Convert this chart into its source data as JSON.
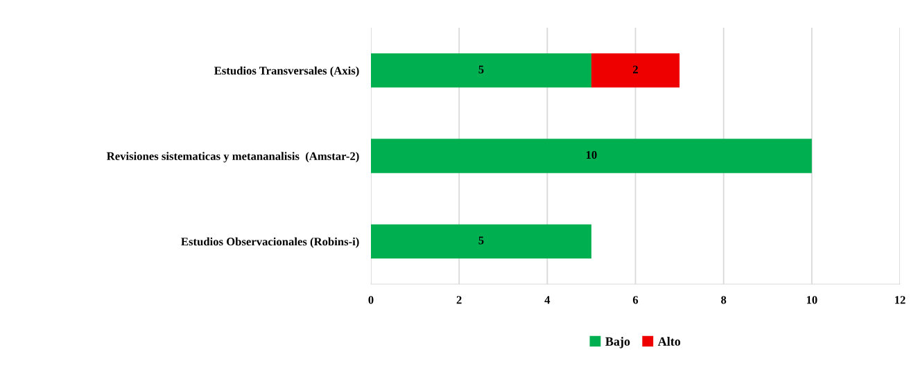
{
  "chart_data": {
    "type": "bar",
    "orientation": "horizontal",
    "stacked": true,
    "categories": [
      "Estudios Transversales (Axis)",
      "Revisiones sistematicas y metananalisis  (Amstar-2)",
      "Estudios Observacionales (Robins-i)"
    ],
    "series": [
      {
        "name": "Bajo",
        "color": "#00b050",
        "values": [
          5,
          10,
          5
        ]
      },
      {
        "name": "Alto",
        "color": "#ee0000",
        "values": [
          2,
          null,
          null
        ]
      }
    ],
    "xlim": [
      0,
      12
    ],
    "xticks": [
      0,
      2,
      4,
      6,
      8,
      10,
      12
    ],
    "grid": "x",
    "legend": "bottom",
    "data_labels": true
  }
}
